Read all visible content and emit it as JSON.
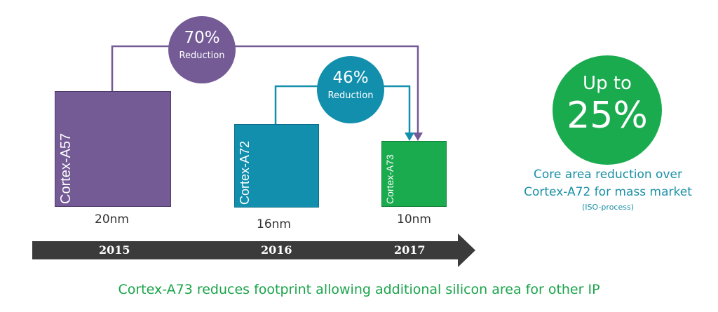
{
  "colors": {
    "purple": "#745b96",
    "teal": "#138fae",
    "green": "#1aab4f",
    "arrow": "#3b3b3b",
    "text_teal": "#1a8fa6"
  },
  "cores": [
    {
      "name": "Cortex-A57",
      "node": "20nm"
    },
    {
      "name": "Cortex-A72",
      "node": "16nm"
    },
    {
      "name": "Cortex-A73",
      "node": "10nm"
    }
  ],
  "reductions": [
    {
      "percent": "70%",
      "label": "Reduction"
    },
    {
      "percent": "46%",
      "label": "Reduction"
    }
  ],
  "timeline": {
    "years": [
      "2015",
      "2016",
      "2017"
    ]
  },
  "highlight": {
    "line1": "Up to",
    "value": "25%"
  },
  "side_text": {
    "line1": "Core area reduction over",
    "line2": "Cortex-A72 for mass market",
    "note": "(ISO-process)"
  },
  "caption": "Cortex-A73 reduces footprint allowing additional silicon area for other IP"
}
